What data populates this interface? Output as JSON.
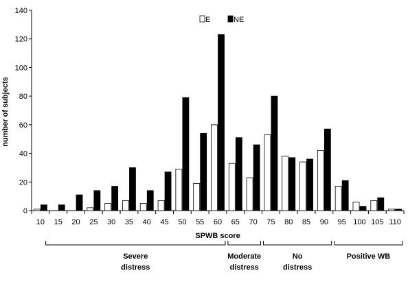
{
  "chart_data": {
    "type": "bar",
    "title": "",
    "xlabel": "SPWB score",
    "ylabel": "number of subjects",
    "ylim": [
      0,
      140
    ],
    "yticks": [
      0,
      20,
      40,
      60,
      80,
      100,
      120,
      140
    ],
    "grid": false,
    "legend_position": "top-center",
    "categories": [
      "10",
      "15",
      "20",
      "25",
      "30",
      "35",
      "40",
      "45",
      "50",
      "55",
      "60",
      "65",
      "70",
      "75",
      "80",
      "85",
      "90",
      "95",
      "100",
      "105",
      "110"
    ],
    "series": [
      {
        "name": "E",
        "color": "#ffffff",
        "values": [
          1,
          0,
          0,
          2,
          5,
          7,
          5,
          7,
          29,
          19,
          60,
          33,
          23,
          53,
          38,
          34,
          42,
          17,
          6,
          7,
          1
        ]
      },
      {
        "name": "NE",
        "color": "#000000",
        "values": [
          4,
          4,
          11,
          14,
          17,
          30,
          14,
          27,
          79,
          54,
          123,
          51,
          46,
          80,
          37,
          36,
          57,
          21,
          3,
          9,
          1
        ]
      }
    ],
    "groups": [
      {
        "label_lines": [
          "Severe",
          "distress"
        ],
        "from": "10",
        "to": "60"
      },
      {
        "label_lines": [
          "Moderate",
          "distress"
        ],
        "from": "65",
        "to": "70"
      },
      {
        "label_lines": [
          "No",
          "distress"
        ],
        "from": "75",
        "to": "90"
      },
      {
        "label_lines": [
          "Positive WB"
        ],
        "from": "95",
        "to": "110"
      }
    ]
  }
}
